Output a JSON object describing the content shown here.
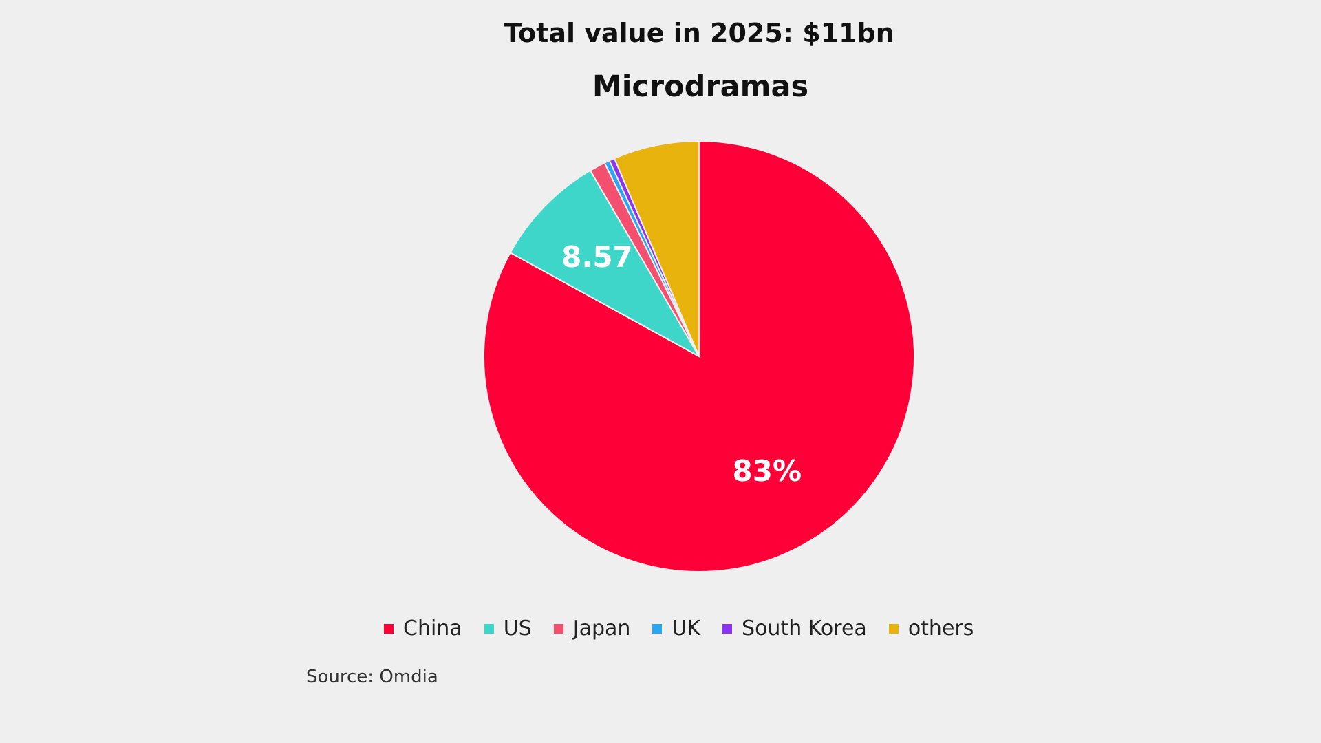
{
  "chart_data": {
    "type": "pie",
    "title": "Total value in 2025: $11bn",
    "subtitle": "Microdramas",
    "categories": [
      "China",
      "US",
      "Japan",
      "UK",
      "South Korea",
      "others"
    ],
    "values": [
      83,
      8.57,
      1.2,
      0.4,
      0.4,
      6.43
    ],
    "colors": [
      "#fe0037",
      "#3ed6c8",
      "#f3506f",
      "#2ba6f0",
      "#8a33f0",
      "#e9b30d"
    ],
    "data_labels": [
      "83%",
      "8.57",
      "",
      "",
      "",
      ""
    ],
    "legend_position": "bottom",
    "source": "Source: Omdia"
  }
}
